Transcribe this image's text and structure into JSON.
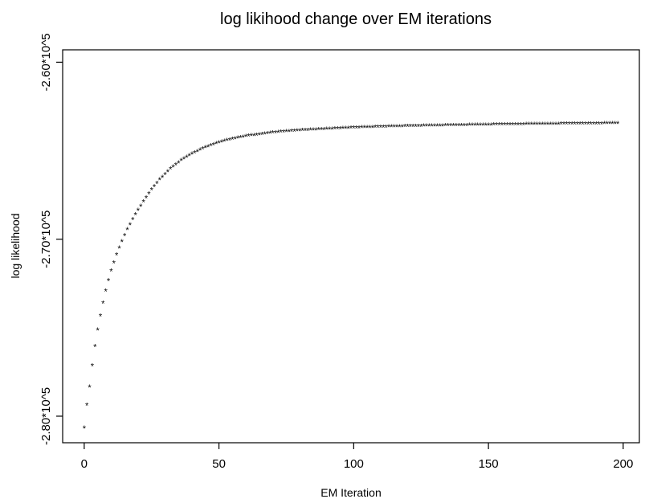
{
  "chart_data": {
    "type": "scatter",
    "title": "log likihood change over EM iterations",
    "xlabel": "EM Iteration",
    "ylabel": "log likelihood",
    "marker": "*",
    "marker_color": "#000000",
    "grid": false,
    "legend": "none",
    "xlim": [
      -8,
      206
    ],
    "ylim": [
      -281500,
      -259300
    ],
    "x_ticks": [
      0,
      50,
      100,
      150,
      200
    ],
    "x_tick_labels": [
      "0",
      "50",
      "100",
      "150",
      "200"
    ],
    "y_ticks": [
      -280000,
      -270000,
      -260000
    ],
    "y_tick_labels": [
      "-2.80*10^5",
      "-2.70*10^5",
      "-2.60*10^5"
    ],
    "x_start": 0,
    "x_end": 198,
    "y_values_sampled": [
      [
        0,
        -280680
      ],
      [
        1,
        -279400
      ],
      [
        2,
        -278360
      ],
      [
        3,
        -277160
      ],
      [
        4,
        -276080
      ],
      [
        5,
        -275140
      ],
      [
        6,
        -274360
      ],
      [
        7,
        -273620
      ],
      [
        8,
        -272940
      ],
      [
        9,
        -272360
      ],
      [
        10,
        -271800
      ],
      [
        12,
        -270900
      ],
      [
        14,
        -270140
      ],
      [
        16,
        -269480
      ],
      [
        18,
        -268900
      ],
      [
        20,
        -268380
      ],
      [
        22,
        -267910
      ],
      [
        25,
        -267230
      ],
      [
        28,
        -266660
      ],
      [
        32,
        -266050
      ],
      [
        36,
        -265570
      ],
      [
        40,
        -265200
      ],
      [
        45,
        -264840
      ],
      [
        50,
        -264560
      ],
      [
        55,
        -264360
      ],
      [
        60,
        -264210
      ],
      [
        70,
        -264000
      ],
      [
        80,
        -263880
      ],
      [
        90,
        -263800
      ],
      [
        100,
        -263730
      ],
      [
        110,
        -263680
      ],
      [
        120,
        -263640
      ],
      [
        130,
        -263610
      ],
      [
        150,
        -263560
      ],
      [
        170,
        -263520
      ],
      [
        198,
        -263480
      ]
    ]
  }
}
